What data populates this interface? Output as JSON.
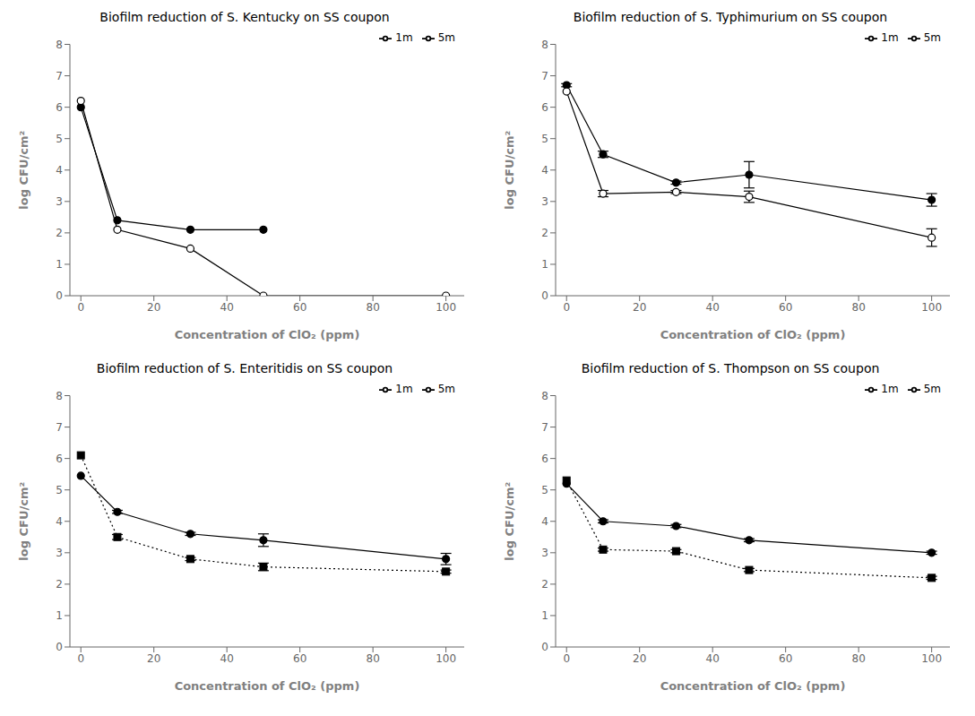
{
  "chart_data": [
    {
      "type": "line",
      "title": "Biofilm reduction of S. Kentucky on SS coupon",
      "x_label": "Concentration of ClO₂ (ppm)",
      "y_label": "log CFU/cm²",
      "xlim": [
        -3,
        105
      ],
      "xticks": [
        0,
        20,
        40,
        60,
        80,
        100
      ],
      "ylim": [
        0,
        8
      ],
      "yticks": [
        0,
        1,
        2,
        3,
        4,
        5,
        6,
        7,
        8
      ],
      "grid": false,
      "legend": "upper right",
      "series": [
        {
          "name": "1m",
          "color": "black",
          "marker": "circle",
          "line_style": "solid",
          "x": [
            0,
            10,
            30,
            50
          ],
          "values": [
            6.0,
            2.4,
            2.1,
            2.1
          ],
          "yerr": [
            0,
            0,
            0,
            0
          ]
        },
        {
          "name": "5m",
          "color": "black",
          "marker": "open_circle",
          "line_style": "solid",
          "x": [
            0,
            10,
            30,
            50,
            100
          ],
          "values": [
            6.2,
            2.1,
            1.5,
            0.0,
            0.0
          ],
          "yerr": [
            0,
            0,
            0,
            0,
            0
          ]
        }
      ]
    },
    {
      "type": "line",
      "title": "Biofilm reduction of S. Typhimurium on SS coupon",
      "x_label": "Concentration of ClO₂ (ppm)",
      "y_label": "log CFU/cm²",
      "xlim": [
        -3,
        105
      ],
      "xticks": [
        0,
        20,
        40,
        60,
        80,
        100
      ],
      "ylim": [
        0,
        8
      ],
      "yticks": [
        0,
        1,
        2,
        3,
        4,
        5,
        6,
        7,
        8
      ],
      "grid": false,
      "legend": "upper right",
      "series": [
        {
          "name": "1m",
          "color": "black",
          "marker": "circle",
          "line_style": "solid",
          "x": [
            0,
            10,
            30,
            50,
            100
          ],
          "values": [
            6.7,
            4.5,
            3.6,
            3.85,
            3.05
          ],
          "yerr": [
            0.05,
            0.1,
            0.05,
            0.42,
            0.2
          ]
        },
        {
          "name": "5m",
          "color": "black",
          "marker": "open_circle",
          "line_style": "solid",
          "x": [
            0,
            10,
            30,
            50,
            100
          ],
          "values": [
            6.5,
            3.25,
            3.3,
            3.15,
            1.85
          ],
          "yerr": [
            0.0,
            0.1,
            0.05,
            0.18,
            0.28
          ]
        }
      ]
    },
    {
      "type": "line",
      "title": "Biofilm reduction of S. Enteritidis on SS coupon",
      "x_label": "Concentration of ClO₂ (ppm)",
      "y_label": "log CFU/cm²",
      "xlim": [
        -3,
        105
      ],
      "xticks": [
        0,
        20,
        40,
        60,
        80,
        100
      ],
      "ylim": [
        0,
        8
      ],
      "yticks": [
        0,
        1,
        2,
        3,
        4,
        5,
        6,
        7,
        8
      ],
      "grid": false,
      "legend": "upper right",
      "series": [
        {
          "name": "1m",
          "color": "black",
          "marker": "circle",
          "line_style": "solid",
          "x": [
            0,
            10,
            30,
            50,
            100
          ],
          "values": [
            5.45,
            4.3,
            3.6,
            3.4,
            2.8
          ],
          "yerr": [
            0,
            0.05,
            0.05,
            0.2,
            0.18
          ]
        },
        {
          "name": "5m",
          "color": "black",
          "marker": "square",
          "line_style": "dotted",
          "x": [
            0,
            10,
            30,
            50,
            100
          ],
          "values": [
            6.1,
            3.5,
            2.8,
            2.55,
            2.4
          ],
          "yerr": [
            0,
            0.08,
            0.05,
            0.12,
            0.05
          ]
        }
      ]
    },
    {
      "type": "line",
      "title": "Biofilm reduction of S. Thompson on SS coupon",
      "x_label": "Concentration of ClO₂ (ppm)",
      "y_label": "log CFU/cm²",
      "xlim": [
        -3,
        105
      ],
      "xticks": [
        0,
        20,
        40,
        60,
        80,
        100
      ],
      "ylim": [
        0,
        8
      ],
      "yticks": [
        0,
        1,
        2,
        3,
        4,
        5,
        6,
        7,
        8
      ],
      "grid": false,
      "legend": "upper right",
      "series": [
        {
          "name": "1m",
          "color": "black",
          "marker": "circle",
          "line_style": "solid",
          "x": [
            0,
            10,
            30,
            50,
            100
          ],
          "values": [
            5.2,
            4.0,
            3.85,
            3.4,
            3.0
          ],
          "yerr": [
            0,
            0.05,
            0.05,
            0.05,
            0.05
          ]
        },
        {
          "name": "5m",
          "color": "black",
          "marker": "square",
          "line_style": "dotted",
          "x": [
            0,
            10,
            30,
            50,
            100
          ],
          "values": [
            5.3,
            3.1,
            3.05,
            2.45,
            2.2
          ],
          "yerr": [
            0,
            0.05,
            0.05,
            0.05,
            0.05
          ]
        }
      ]
    }
  ]
}
